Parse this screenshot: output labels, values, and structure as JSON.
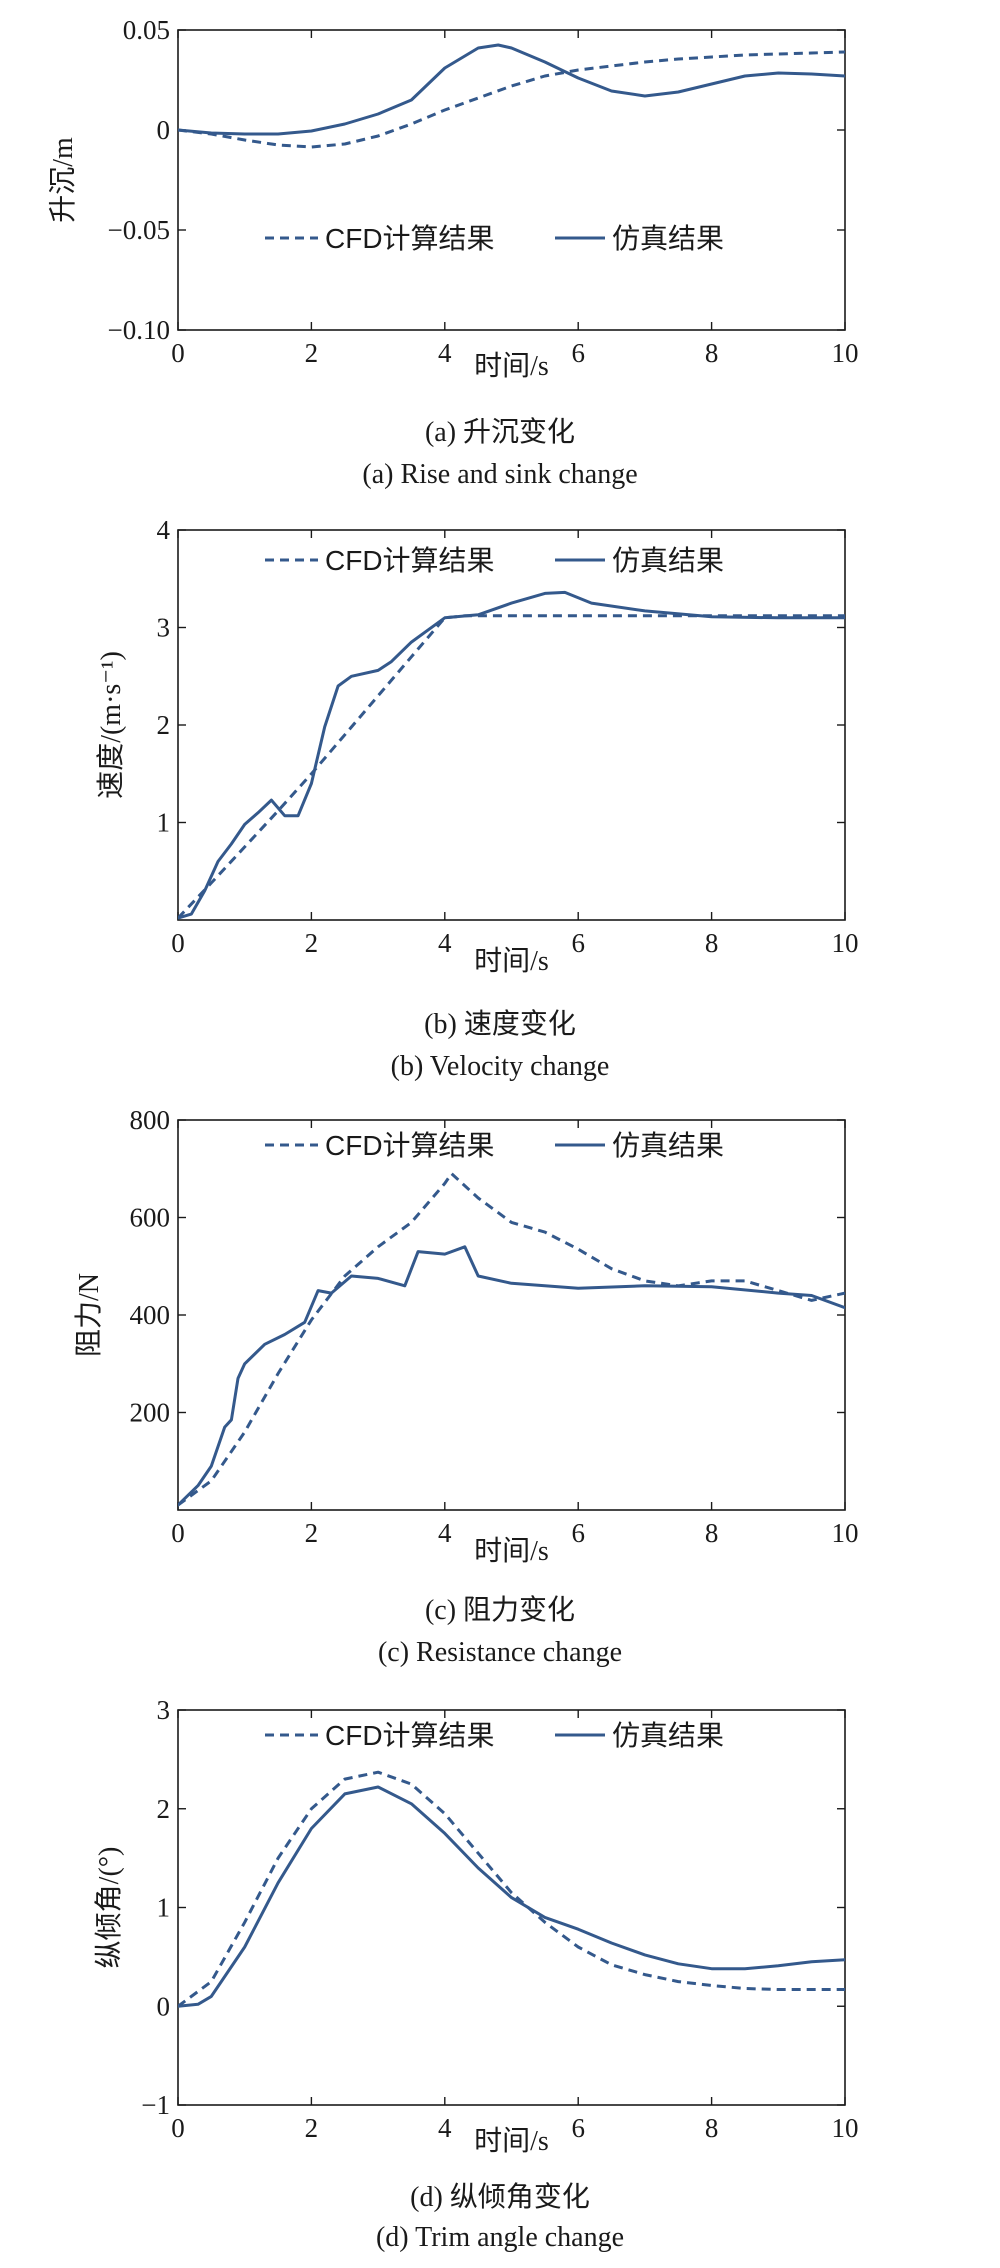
{
  "legend": {
    "cfd": "CFD计算结果",
    "sim": "仿真结果"
  },
  "colors": {
    "line": "#34598c"
  },
  "chart_data": [
    {
      "type": "line",
      "xlabel": "时间/s",
      "ylabel": "升沉/m",
      "xlim": [
        0,
        10
      ],
      "ylim": [
        -0.1,
        0.05
      ],
      "xticks": [
        0,
        2,
        4,
        6,
        8,
        10
      ],
      "xtick_labels": [
        "0",
        "2",
        "4",
        "6",
        "8",
        "10"
      ],
      "yticks": [
        -0.1,
        -0.05,
        0,
        0.05
      ],
      "ytick_labels": [
        "−0.10",
        "−0.05",
        "0",
        "0.05"
      ],
      "legend_position": "lower-middle",
      "caption_zh": "(a) 升沉变化",
      "caption_en": "(a) Rise and sink change",
      "series": [
        {
          "name": "CFD计算结果",
          "style": "dashed",
          "x": [
            0,
            0.5,
            1,
            1.5,
            2,
            2.5,
            3,
            3.5,
            4,
            4.5,
            5,
            5.5,
            6,
            6.5,
            7,
            7.5,
            8,
            8.5,
            9,
            9.5,
            10
          ],
          "y": [
            0,
            -0.002,
            -0.005,
            -0.0075,
            -0.0085,
            -0.007,
            -0.003,
            0.003,
            0.01,
            0.016,
            0.022,
            0.027,
            0.03,
            0.032,
            0.034,
            0.0355,
            0.0365,
            0.0375,
            0.038,
            0.0385,
            0.039
          ]
        },
        {
          "name": "仿真结果",
          "style": "solid",
          "x": [
            0,
            0.5,
            1,
            1.5,
            2,
            2.5,
            3,
            3.5,
            4,
            4.5,
            4.8,
            5,
            5.5,
            6,
            6.5,
            7,
            7.5,
            8,
            8.5,
            9,
            9.5,
            10
          ],
          "y": [
            0,
            -0.0015,
            -0.002,
            -0.002,
            -0.0005,
            0.003,
            0.008,
            0.015,
            0.031,
            0.041,
            0.0425,
            0.041,
            0.034,
            0.026,
            0.0195,
            0.017,
            0.019,
            0.023,
            0.027,
            0.0285,
            0.028,
            0.027
          ]
        }
      ]
    },
    {
      "type": "line",
      "xlabel": "时间/s",
      "ylabel": "速度/(m·s⁻¹)",
      "xlim": [
        0,
        10
      ],
      "ylim": [
        0,
        4
      ],
      "xticks": [
        0,
        2,
        4,
        6,
        8,
        10
      ],
      "xtick_labels": [
        "0",
        "2",
        "4",
        "6",
        "8",
        "10"
      ],
      "yticks": [
        1,
        2,
        3,
        4
      ],
      "ytick_labels": [
        "1",
        "2",
        "3",
        "4"
      ],
      "legend_position": "top",
      "caption_zh": "(b) 速度变化",
      "caption_en": "(b) Velocity change",
      "series": [
        {
          "name": "CFD计算结果",
          "style": "dashed",
          "x": [
            0,
            0.5,
            1,
            1.5,
            2,
            2.5,
            3,
            3.5,
            4,
            4.3,
            5,
            6,
            7,
            8,
            9,
            10
          ],
          "y": [
            0.02,
            0.38,
            0.75,
            1.12,
            1.5,
            1.9,
            2.3,
            2.7,
            3.1,
            3.12,
            3.12,
            3.12,
            3.12,
            3.12,
            3.12,
            3.12
          ]
        },
        {
          "name": "仿真结果",
          "style": "solid",
          "x": [
            0,
            0.2,
            0.4,
            0.6,
            0.8,
            1.0,
            1.2,
            1.4,
            1.6,
            1.8,
            2.0,
            2.2,
            2.4,
            2.6,
            3.0,
            3.2,
            3.5,
            4.0,
            4.5,
            5.0,
            5.5,
            5.8,
            6.2,
            7.0,
            8.0,
            9.0,
            10.0
          ],
          "y": [
            0.02,
            0.06,
            0.3,
            0.6,
            0.78,
            0.98,
            1.1,
            1.23,
            1.07,
            1.07,
            1.4,
            1.98,
            2.4,
            2.5,
            2.56,
            2.65,
            2.85,
            3.1,
            3.13,
            3.25,
            3.35,
            3.36,
            3.25,
            3.17,
            3.11,
            3.1,
            3.1
          ]
        }
      ]
    },
    {
      "type": "line",
      "xlabel": "时间/s",
      "ylabel": "阻力/N",
      "xlim": [
        0,
        10
      ],
      "ylim": [
        0,
        800
      ],
      "xticks": [
        0,
        2,
        4,
        6,
        8,
        10
      ],
      "xtick_labels": [
        "0",
        "2",
        "4",
        "6",
        "8",
        "10"
      ],
      "yticks": [
        200,
        400,
        600,
        800
      ],
      "ytick_labels": [
        "200",
        "400",
        "600",
        "800"
      ],
      "legend_position": "top",
      "caption_zh": "(c) 阻力变化",
      "caption_en": "(c) Resistance change",
      "series": [
        {
          "name": "CFD计算结果",
          "style": "dashed",
          "x": [
            0,
            0.5,
            1,
            1.5,
            2,
            2.5,
            3,
            3.5,
            4,
            4.1,
            4.5,
            5,
            5.5,
            6,
            6.5,
            7,
            7.5,
            8,
            8.5,
            9,
            9.5,
            10
          ],
          "y": [
            10,
            60,
            160,
            280,
            390,
            480,
            540,
            590,
            670,
            690,
            640,
            590,
            570,
            535,
            495,
            470,
            460,
            470,
            470,
            450,
            430,
            445
          ]
        },
        {
          "name": "仿真结果",
          "style": "solid",
          "x": [
            0,
            0.3,
            0.5,
            0.7,
            0.8,
            0.9,
            1.0,
            1.3,
            1.6,
            1.9,
            2.1,
            2.3,
            2.6,
            3.0,
            3.4,
            3.6,
            4.0,
            4.3,
            4.5,
            5.0,
            6.0,
            7.0,
            8.0,
            9.0,
            9.5,
            10.0
          ],
          "y": [
            10,
            50,
            90,
            170,
            185,
            270,
            300,
            340,
            360,
            385,
            450,
            445,
            480,
            475,
            460,
            530,
            525,
            540,
            480,
            465,
            455,
            460,
            458,
            445,
            440,
            415
          ]
        }
      ]
    },
    {
      "type": "line",
      "xlabel": "时间/s",
      "ylabel": "纵倾角/(°)",
      "xlim": [
        0,
        10
      ],
      "ylim": [
        -1,
        3
      ],
      "xticks": [
        0,
        2,
        4,
        6,
        8,
        10
      ],
      "xtick_labels": [
        "0",
        "2",
        "4",
        "6",
        "8",
        "10"
      ],
      "yticks": [
        -1,
        0,
        1,
        2,
        3
      ],
      "ytick_labels": [
        "−1",
        "0",
        "1",
        "2",
        "3"
      ],
      "legend_position": "top",
      "caption_zh": "(d) 纵倾角变化",
      "caption_en": "(d) Trim angle change",
      "series": [
        {
          "name": "CFD计算结果",
          "style": "dashed",
          "x": [
            0,
            0.5,
            1,
            1.5,
            2,
            2.5,
            3,
            3.5,
            4,
            4.5,
            5,
            5.5,
            6,
            6.5,
            7,
            7.5,
            8,
            8.5,
            9,
            9.5,
            10
          ],
          "y": [
            0,
            0.25,
            0.85,
            1.5,
            2.0,
            2.3,
            2.37,
            2.25,
            1.95,
            1.55,
            1.15,
            0.85,
            0.6,
            0.42,
            0.32,
            0.25,
            0.21,
            0.18,
            0.17,
            0.17,
            0.17
          ]
        },
        {
          "name": "仿真结果",
          "style": "solid",
          "x": [
            0,
            0.3,
            0.5,
            1,
            1.5,
            2,
            2.5,
            3,
            3.5,
            4,
            4.5,
            5,
            5.5,
            6,
            6.5,
            7,
            7.5,
            8,
            8.5,
            9,
            9.5,
            10
          ],
          "y": [
            0,
            0.02,
            0.1,
            0.6,
            1.25,
            1.8,
            2.15,
            2.22,
            2.05,
            1.75,
            1.4,
            1.1,
            0.9,
            0.78,
            0.64,
            0.52,
            0.43,
            0.38,
            0.38,
            0.41,
            0.45,
            0.47
          ]
        }
      ]
    }
  ]
}
